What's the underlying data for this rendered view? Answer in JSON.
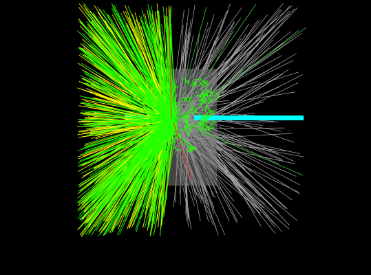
{
  "scene": {
    "background": "#000000",
    "colors": {
      "detector": "#7a7a7a",
      "beam": "#00ffff",
      "track_green": "#22ff00",
      "track_yellow": "#ffff00",
      "track_grey": "#a8a8a8",
      "track_red": "#ff2020",
      "track_dark_green": "#2fa82f"
    },
    "track_counts": {
      "yellow": 230,
      "green": 260,
      "grey": 180,
      "curly": 55,
      "red": 2
    }
  }
}
